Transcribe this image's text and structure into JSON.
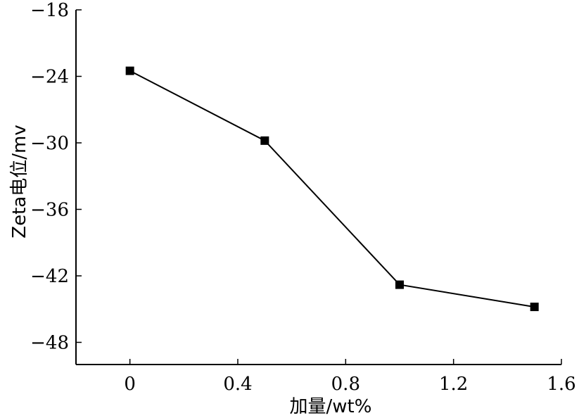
{
  "chart_data": {
    "type": "line",
    "title": "",
    "xlabel": "加量/wt%",
    "ylabel": "Zeta电位/mv",
    "xlim": [
      -0.2,
      1.6
    ],
    "ylim": [
      -50,
      -18
    ],
    "x_ticks": [
      0,
      0.4,
      0.8,
      1.2,
      1.6
    ],
    "x_tick_labels": [
      "0",
      "0.4",
      "0.8",
      "1.2",
      "1.6"
    ],
    "y_ticks": [
      -18,
      -24,
      -30,
      -36,
      -42,
      -48
    ],
    "y_tick_labels": [
      "−18",
      "−24",
      "−30",
      "−36",
      "−42",
      "−48"
    ],
    "grid": false,
    "legend": "none",
    "series": [
      {
        "x": [
          0,
          0.5,
          1.0,
          1.5
        ],
        "values": [
          -23.5,
          -29.8,
          -42.8,
          -44.8
        ],
        "marker": "square",
        "color": "#000000"
      }
    ]
  }
}
